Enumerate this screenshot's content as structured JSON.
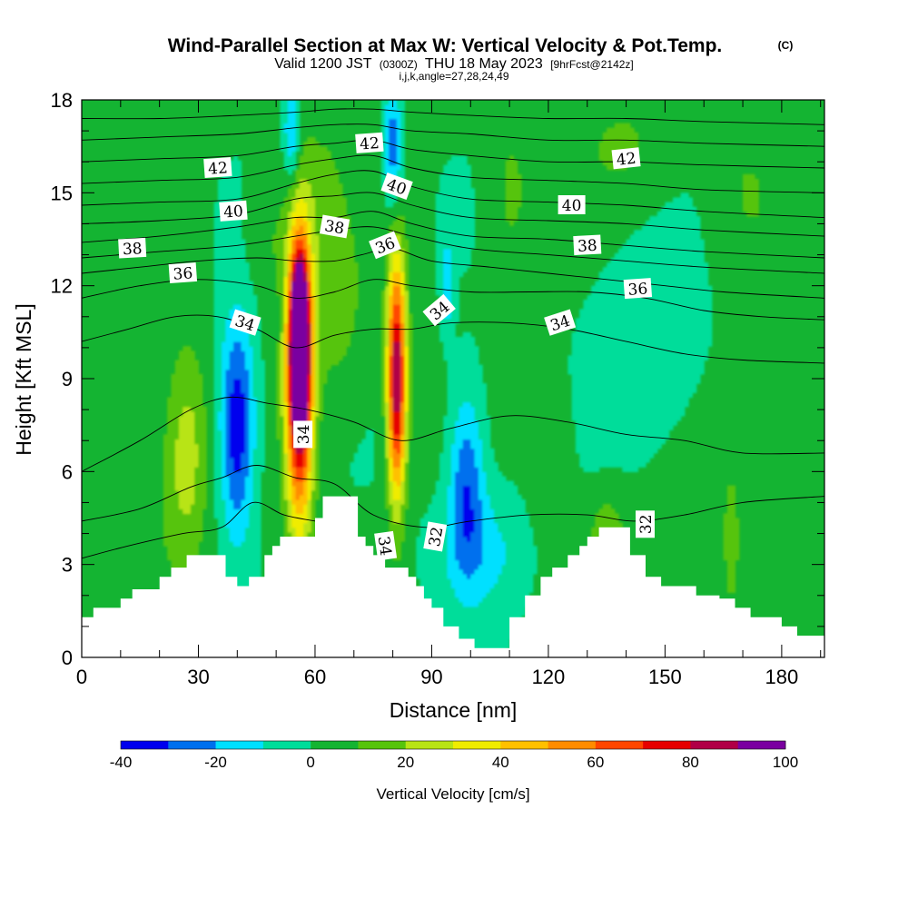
{
  "title": {
    "main": "Wind-Parallel Section at Max W: Vertical Velocity & Pot.Temp.",
    "copyright": "(C)",
    "valid_prefix": "Valid 1200 JST",
    "valid_utc": "(0300Z)",
    "valid_date": "THU 18 May 2023",
    "forecast": "[9hrFcst@2142z]",
    "indices": "i,j,k,angle=27,28,24,49"
  },
  "colors": {
    "palette": [
      "#0000ee",
      "#0070ee",
      "#00e0ff",
      "#00dd9a",
      "#14b432",
      "#56c40c",
      "#b8e414",
      "#f0ec00",
      "#ffc000",
      "#ff8c00",
      "#ff4600",
      "#e60000",
      "#b00046",
      "#7a00a0"
    ],
    "terrain": "#ffffff"
  },
  "chart_data": {
    "type": "heatmap",
    "xlabel": "Distance [nm]",
    "ylabel": "Height [Kft MSL]",
    "xlim": [
      0,
      191
    ],
    "ylim": [
      0,
      18
    ],
    "xticks": [
      "0",
      "30",
      "60",
      "90",
      "120",
      "150",
      "180"
    ],
    "yticks": [
      "0",
      "3",
      "6",
      "9",
      "12",
      "15",
      "18"
    ],
    "colorbar": {
      "label": "Vertical Velocity [cm/s]",
      "levels": [
        -40,
        -30,
        -20,
        -10,
        0,
        10,
        20,
        30,
        40,
        50,
        60,
        70,
        80,
        90,
        100
      ],
      "tick_labels": [
        "-40",
        "-20",
        "0",
        "20",
        "40",
        "60",
        "80",
        "100"
      ],
      "tick_values": [
        -40,
        -20,
        0,
        20,
        40,
        60,
        80,
        100
      ]
    },
    "vertical_velocity_cells": [
      {
        "x": 56,
        "z": 10.5,
        "w": 95,
        "sx": 2.5,
        "sz": 2.8
      },
      {
        "x": 56,
        "z": 8.5,
        "w": 80,
        "sx": 3.5,
        "sz": 4.5
      },
      {
        "x": 81,
        "z": 9.0,
        "w": 90,
        "sx": 2.4,
        "sz": 3.8
      },
      {
        "x": 27,
        "z": 6.5,
        "w": 22,
        "sx": 5,
        "sz": 3.5
      },
      {
        "x": 40,
        "z": 7.5,
        "w": -42,
        "sx": 4.5,
        "sz": 3.5
      },
      {
        "x": 99,
        "z": 5.8,
        "w": -30,
        "sx": 4.5,
        "sz": 3.0
      },
      {
        "x": 103,
        "z": 3.5,
        "w": -15,
        "sx": 12,
        "sz": 2.0
      },
      {
        "x": 145,
        "z": 10.0,
        "w": -12,
        "sx": 14,
        "sz": 3.2
      },
      {
        "x": 80,
        "z": 16.5,
        "w": -30,
        "sx": 2.2,
        "sz": 2.0
      },
      {
        "x": 54,
        "z": 17.0,
        "w": -25,
        "sx": 2.0,
        "sz": 1.6
      },
      {
        "x": 94,
        "z": 12.0,
        "w": -20,
        "sx": 1.5,
        "sz": 1.6
      },
      {
        "x": 65,
        "z": 11.0,
        "w": 12,
        "sx": 8,
        "sz": 3.0
      },
      {
        "x": 60,
        "z": 15.0,
        "w": 10,
        "sx": 7,
        "sz": 2.5
      },
      {
        "x": 110,
        "z": 15.0,
        "w": 10,
        "sx": 6,
        "sz": 3.0
      },
      {
        "x": 140,
        "z": 16.5,
        "w": 9,
        "sx": 12,
        "sz": 2.0
      },
      {
        "x": 170,
        "z": 15.0,
        "w": 8,
        "sx": 9,
        "sz": 3.0
      },
      {
        "x": 15,
        "z": 5.0,
        "w": 8,
        "sx": 10,
        "sz": 4.0
      },
      {
        "x": 180,
        "z": 8.0,
        "w": 10,
        "sx": 6,
        "sz": 4.0
      },
      {
        "x": 135,
        "z": 4.0,
        "w": 15,
        "sx": 5,
        "sz": 1.4
      },
      {
        "x": 167,
        "z": 3.8,
        "w": 18,
        "sx": 1.8,
        "sz": 2.0
      },
      {
        "x": 120,
        "z": 6.5,
        "w": 8,
        "sx": 6,
        "sz": 3.0
      },
      {
        "x": 48,
        "z": 13.5,
        "w": 9,
        "sx": 6,
        "sz": 2.0
      }
    ],
    "terrain_kft": [
      {
        "x": 0,
        "z": 1.3
      },
      {
        "x": 3,
        "z": 1.6
      },
      {
        "x": 10,
        "z": 1.9
      },
      {
        "x": 13,
        "z": 2.2
      },
      {
        "x": 20,
        "z": 2.6
      },
      {
        "x": 23,
        "z": 2.9
      },
      {
        "x": 27,
        "z": 3.3
      },
      {
        "x": 37,
        "z": 2.6
      },
      {
        "x": 40,
        "z": 2.3
      },
      {
        "x": 43,
        "z": 2.6
      },
      {
        "x": 47,
        "z": 3.3
      },
      {
        "x": 49,
        "z": 3.6
      },
      {
        "x": 51,
        "z": 3.9
      },
      {
        "x": 60,
        "z": 4.5
      },
      {
        "x": 62,
        "z": 5.2
      },
      {
        "x": 71,
        "z": 3.9
      },
      {
        "x": 73,
        "z": 3.6
      },
      {
        "x": 75,
        "z": 3.3
      },
      {
        "x": 78,
        "z": 2.9
      },
      {
        "x": 84,
        "z": 2.6
      },
      {
        "x": 86,
        "z": 2.3
      },
      {
        "x": 88,
        "z": 1.9
      },
      {
        "x": 90,
        "z": 1.6
      },
      {
        "x": 93,
        "z": 1.0
      },
      {
        "x": 97,
        "z": 0.6
      },
      {
        "x": 101,
        "z": 0.3
      },
      {
        "x": 110,
        "z": 1.3
      },
      {
        "x": 114,
        "z": 2.0
      },
      {
        "x": 118,
        "z": 2.6
      },
      {
        "x": 121,
        "z": 2.9
      },
      {
        "x": 125,
        "z": 3.3
      },
      {
        "x": 128,
        "z": 3.6
      },
      {
        "x": 130,
        "z": 3.9
      },
      {
        "x": 133,
        "z": 4.2
      },
      {
        "x": 141,
        "z": 3.3
      },
      {
        "x": 145,
        "z": 2.6
      },
      {
        "x": 149,
        "z": 2.3
      },
      {
        "x": 158,
        "z": 2.0
      },
      {
        "x": 164,
        "z": 1.9
      },
      {
        "x": 168,
        "z": 1.6
      },
      {
        "x": 172,
        "z": 1.3
      },
      {
        "x": 180,
        "z": 1.0
      },
      {
        "x": 184,
        "z": 0.7
      },
      {
        "x": 191,
        "z": 0.6
      }
    ],
    "pot_temp_contours": [
      {
        "value": 31,
        "points": [
          [
            0,
            3.2
          ],
          [
            12,
            3.6
          ],
          [
            26,
            4.0
          ],
          [
            36,
            4.2
          ],
          [
            44,
            5.0
          ],
          [
            52,
            4.6
          ],
          [
            60,
            4.4
          ]
        ]
      },
      {
        "value": 32,
        "points": [
          [
            0,
            4.4
          ],
          [
            15,
            4.8
          ],
          [
            28,
            5.5
          ],
          [
            36,
            5.8
          ],
          [
            45,
            6.2
          ],
          [
            55,
            5.8
          ],
          [
            65,
            5.6
          ],
          [
            75,
            4.6
          ],
          [
            88,
            4.2
          ],
          [
            100,
            4.4
          ],
          [
            115,
            4.6
          ],
          [
            130,
            4.6
          ],
          [
            142,
            4.4
          ],
          [
            155,
            4.6
          ],
          [
            170,
            5.0
          ],
          [
            191,
            5.2
          ]
        ]
      },
      {
        "value": 33,
        "points": [
          [
            0,
            6.0
          ],
          [
            15,
            7.0
          ],
          [
            28,
            8.0
          ],
          [
            38,
            8.4
          ],
          [
            48,
            8.2
          ],
          [
            58,
            8.0
          ],
          [
            70,
            7.6
          ],
          [
            82,
            7.0
          ],
          [
            95,
            7.4
          ],
          [
            110,
            7.8
          ],
          [
            125,
            7.6
          ],
          [
            140,
            7.2
          ],
          [
            155,
            7.0
          ],
          [
            170,
            6.6
          ],
          [
            191,
            6.6
          ]
        ]
      },
      {
        "value": 34,
        "points": [
          [
            0,
            10.2
          ],
          [
            12,
            10.6
          ],
          [
            24,
            11.0
          ],
          [
            35,
            11.0
          ],
          [
            45,
            10.6
          ],
          [
            55,
            10.0
          ],
          [
            65,
            10.4
          ],
          [
            75,
            10.6
          ],
          [
            85,
            10.6
          ],
          [
            95,
            10.8
          ],
          [
            110,
            10.8
          ],
          [
            125,
            10.6
          ],
          [
            140,
            10.2
          ],
          [
            155,
            9.8
          ],
          [
            170,
            9.6
          ],
          [
            191,
            9.5
          ]
        ]
      },
      {
        "value": 35,
        "points": [
          [
            0,
            11.6
          ],
          [
            15,
            12.0
          ],
          [
            30,
            12.2
          ],
          [
            45,
            12.0
          ],
          [
            55,
            11.6
          ],
          [
            65,
            11.8
          ],
          [
            75,
            12.2
          ],
          [
            85,
            12.0
          ],
          [
            100,
            11.8
          ],
          [
            115,
            11.8
          ],
          [
            130,
            11.8
          ],
          [
            145,
            11.6
          ],
          [
            160,
            11.2
          ],
          [
            175,
            11.0
          ],
          [
            191,
            10.9
          ]
        ]
      },
      {
        "value": 36,
        "points": [
          [
            0,
            12.4
          ],
          [
            15,
            12.6
          ],
          [
            30,
            12.8
          ],
          [
            45,
            12.9
          ],
          [
            55,
            12.8
          ],
          [
            65,
            12.8
          ],
          [
            72,
            13.0
          ],
          [
            80,
            13.2
          ],
          [
            90,
            12.8
          ],
          [
            105,
            12.6
          ],
          [
            120,
            12.4
          ],
          [
            135,
            12.2
          ],
          [
            150,
            12.0
          ],
          [
            165,
            11.8
          ],
          [
            191,
            11.6
          ]
        ]
      },
      {
        "value": 37,
        "points": [
          [
            0,
            12.9
          ],
          [
            20,
            13.1
          ],
          [
            40,
            13.3
          ],
          [
            55,
            13.6
          ],
          [
            65,
            13.8
          ],
          [
            75,
            13.9
          ],
          [
            85,
            13.6
          ],
          [
            100,
            13.2
          ],
          [
            120,
            13.0
          ],
          [
            140,
            12.8
          ],
          [
            160,
            12.6
          ],
          [
            191,
            12.4
          ]
        ]
      },
      {
        "value": 38,
        "points": [
          [
            0,
            13.4
          ],
          [
            20,
            13.6
          ],
          [
            40,
            13.9
          ],
          [
            55,
            14.2
          ],
          [
            65,
            14.2
          ],
          [
            75,
            14.4
          ],
          [
            85,
            14.0
          ],
          [
            100,
            13.6
          ],
          [
            120,
            13.5
          ],
          [
            140,
            13.3
          ],
          [
            160,
            13.1
          ],
          [
            191,
            12.9
          ]
        ]
      },
      {
        "value": 39,
        "points": [
          [
            0,
            14.0
          ],
          [
            20,
            14.1
          ],
          [
            40,
            14.3
          ],
          [
            55,
            14.8
          ],
          [
            65,
            14.9
          ],
          [
            75,
            15.0
          ],
          [
            85,
            14.6
          ],
          [
            100,
            14.2
          ],
          [
            120,
            14.1
          ],
          [
            140,
            14.0
          ],
          [
            160,
            13.8
          ],
          [
            191,
            13.6
          ]
        ]
      },
      {
        "value": 40,
        "points": [
          [
            0,
            14.6
          ],
          [
            20,
            14.7
          ],
          [
            40,
            14.8
          ],
          [
            55,
            15.3
          ],
          [
            65,
            15.6
          ],
          [
            75,
            15.7
          ],
          [
            85,
            15.2
          ],
          [
            100,
            14.8
          ],
          [
            120,
            14.7
          ],
          [
            140,
            14.6
          ],
          [
            160,
            14.4
          ],
          [
            191,
            14.2
          ]
        ]
      },
      {
        "value": 41,
        "points": [
          [
            0,
            15.3
          ],
          [
            20,
            15.4
          ],
          [
            40,
            15.5
          ],
          [
            55,
            15.9
          ],
          [
            65,
            16.1
          ],
          [
            75,
            16.2
          ],
          [
            85,
            15.8
          ],
          [
            100,
            15.5
          ],
          [
            120,
            15.4
          ],
          [
            140,
            15.3
          ],
          [
            160,
            15.1
          ],
          [
            191,
            15.0
          ]
        ]
      },
      {
        "value": 42,
        "points": [
          [
            0,
            16.0
          ],
          [
            20,
            16.1
          ],
          [
            40,
            16.2
          ],
          [
            55,
            16.5
          ],
          [
            65,
            16.6
          ],
          [
            75,
            16.7
          ],
          [
            85,
            16.4
          ],
          [
            100,
            16.2
          ],
          [
            120,
            16.0
          ],
          [
            140,
            16.0
          ],
          [
            160,
            15.9
          ],
          [
            191,
            15.8
          ]
        ]
      },
      {
        "value": 43,
        "points": [
          [
            0,
            16.7
          ],
          [
            20,
            16.8
          ],
          [
            40,
            16.9
          ],
          [
            55,
            17.1
          ],
          [
            65,
            17.2
          ],
          [
            75,
            17.2
          ],
          [
            85,
            17.0
          ],
          [
            100,
            16.9
          ],
          [
            120,
            16.7
          ],
          [
            140,
            16.7
          ],
          [
            160,
            16.6
          ],
          [
            191,
            16.5
          ]
        ]
      },
      {
        "value": 44,
        "points": [
          [
            0,
            17.4
          ],
          [
            20,
            17.4
          ],
          [
            40,
            17.5
          ],
          [
            55,
            17.6
          ],
          [
            65,
            17.7
          ],
          [
            75,
            17.7
          ],
          [
            85,
            17.6
          ],
          [
            100,
            17.5
          ],
          [
            120,
            17.4
          ],
          [
            140,
            17.4
          ],
          [
            160,
            17.3
          ],
          [
            191,
            17.2
          ]
        ]
      }
    ],
    "contour_labels": [
      {
        "text": "42",
        "x": 35,
        "z": 15.8,
        "angle": -4
      },
      {
        "text": "42",
        "x": 74,
        "z": 16.6,
        "angle": -4
      },
      {
        "text": "42",
        "x": 140,
        "z": 16.1,
        "angle": -6
      },
      {
        "text": "40",
        "x": 39,
        "z": 14.4,
        "angle": -4
      },
      {
        "text": "40",
        "x": 81,
        "z": 15.2,
        "angle": 20
      },
      {
        "text": "40",
        "x": 126,
        "z": 14.6,
        "angle": 0
      },
      {
        "text": "38",
        "x": 13,
        "z": 13.2,
        "angle": -3
      },
      {
        "text": "38",
        "x": 65,
        "z": 13.9,
        "angle": 10
      },
      {
        "text": "38",
        "x": 130,
        "z": 13.3,
        "angle": -3
      },
      {
        "text": "36",
        "x": 26,
        "z": 12.4,
        "angle": -4
      },
      {
        "text": "36",
        "x": 78,
        "z": 13.3,
        "angle": -22
      },
      {
        "text": "36",
        "x": 143,
        "z": 11.9,
        "angle": -4
      },
      {
        "text": "34",
        "x": 42,
        "z": 10.8,
        "angle": 18
      },
      {
        "text": "34",
        "x": 92,
        "z": 11.2,
        "angle": -40
      },
      {
        "text": "34",
        "x": 123,
        "z": 10.8,
        "angle": -18
      },
      {
        "text": "34",
        "x": 57,
        "z": 7.2,
        "angle": -90
      },
      {
        "text": "34",
        "x": 78,
        "z": 3.6,
        "angle": 82
      },
      {
        "text": "32",
        "x": 91,
        "z": 3.9,
        "angle": -80
      },
      {
        "text": "32",
        "x": 145,
        "z": 4.3,
        "angle": -90
      }
    ]
  }
}
